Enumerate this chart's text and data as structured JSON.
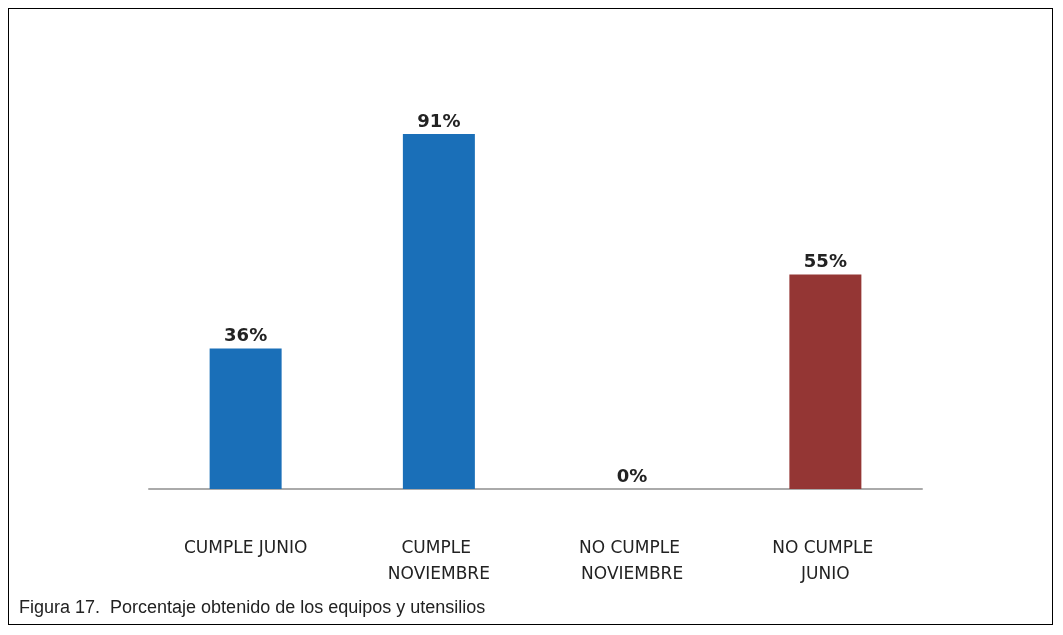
{
  "chart_data": {
    "type": "bar",
    "categories": [
      "CUMPLE JUNIO",
      "CUMPLE NOVIEMBRE",
      "NO CUMPLE NOVIEMBRE",
      "NO CUMPLE JUNIO"
    ],
    "values": [
      36,
      91,
      0,
      55
    ],
    "value_labels": [
      "36%",
      "91%",
      "0%",
      "55%"
    ],
    "colors": [
      "#1a6fb8",
      "#1a6fb8",
      "#943634",
      "#943634"
    ],
    "annotations": [
      "Figura 17.  Porcentaje obtenido de los equipos y utensilios"
    ],
    "grid": false
  }
}
